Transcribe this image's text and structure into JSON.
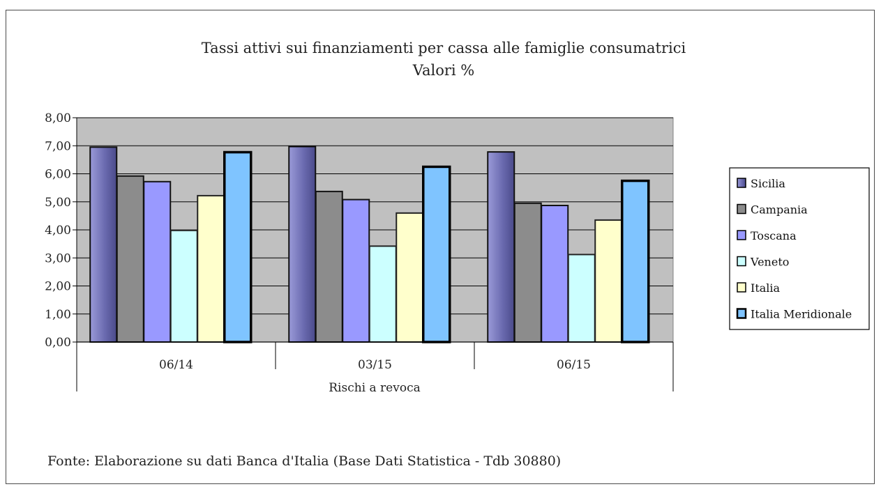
{
  "chart_data": {
    "type": "bar",
    "title": "Tassi attivi sui finanziamenti per cassa alle famiglie consumatrici",
    "subtitle": "Valori %",
    "xlabel": "Rischi a revoca",
    "ylabel": "",
    "ylim": [
      0,
      8
    ],
    "yticks": [
      "0,00",
      "1,00",
      "2,00",
      "3,00",
      "4,00",
      "5,00",
      "6,00",
      "7,00",
      "8,00"
    ],
    "grid": true,
    "legend_position": "right",
    "categories": [
      "06/14",
      "03/15",
      "06/15"
    ],
    "series": [
      {
        "name": "Sicilia",
        "color": "#6b6bb0",
        "values": [
          6.95,
          6.97,
          6.78
        ]
      },
      {
        "name": "Campania",
        "color": "#8c8c8c",
        "values": [
          5.92,
          5.37,
          4.95
        ]
      },
      {
        "name": "Toscana",
        "color": "#9999ff",
        "values": [
          5.72,
          5.08,
          4.87
        ]
      },
      {
        "name": "Veneto",
        "color": "#ccffff",
        "values": [
          3.98,
          3.42,
          3.12
        ]
      },
      {
        "name": "Italia",
        "color": "#ffffcc",
        "values": [
          5.22,
          4.6,
          4.35
        ]
      },
      {
        "name": "Italia Meridionale",
        "color": "#7fc4ff",
        "values": [
          6.77,
          6.25,
          5.75
        ]
      }
    ]
  },
  "source_note": "Fonte: Elaborazione su dati Banca d'Italia (Base Dati Statistica - Tdb 30880)"
}
